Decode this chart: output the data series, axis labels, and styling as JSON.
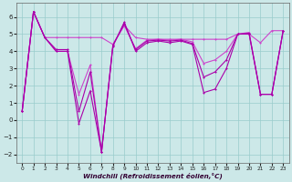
{
  "x": [
    0,
    1,
    2,
    3,
    4,
    5,
    6,
    7,
    8,
    9,
    10,
    11,
    12,
    13,
    14,
    15,
    16,
    17,
    18,
    19,
    20,
    21,
    22,
    23
  ],
  "y_main": [
    0.5,
    6.3,
    4.8,
    4.0,
    4.0,
    -0.2,
    1.7,
    -1.85,
    4.3,
    5.7,
    4.0,
    4.5,
    4.6,
    4.5,
    4.6,
    4.4,
    1.6,
    1.8,
    3.0,
    5.0,
    5.0,
    1.5,
    1.5,
    5.2
  ],
  "y_flat": [
    0.5,
    6.3,
    4.8,
    4.8,
    4.8,
    4.8,
    4.8,
    4.8,
    4.4,
    5.5,
    4.8,
    4.7,
    4.7,
    4.7,
    4.7,
    4.7,
    4.7,
    4.7,
    4.7,
    5.0,
    5.0,
    4.5,
    5.2,
    5.2
  ],
  "y_mid1": [
    0.5,
    6.3,
    4.8,
    4.1,
    4.1,
    0.5,
    2.8,
    -1.85,
    4.35,
    5.6,
    4.1,
    4.6,
    4.65,
    4.6,
    4.65,
    4.45,
    2.5,
    2.8,
    3.5,
    5.0,
    5.05,
    1.5,
    1.5,
    5.2
  ],
  "y_mid2": [
    0.5,
    6.3,
    4.8,
    4.0,
    4.0,
    1.5,
    3.2,
    -1.85,
    4.4,
    5.5,
    4.15,
    4.65,
    4.7,
    4.65,
    4.7,
    4.55,
    3.3,
    3.5,
    4.0,
    5.0,
    5.1,
    1.5,
    1.5,
    5.2
  ],
  "line_color": "#aa00aa",
  "line_color_light": "#cc44cc",
  "bg_color": "#cce8e8",
  "grid_color": "#99cccc",
  "xlabel": "Windchill (Refroidissement éolien,°C)",
  "ylim": [
    -2.5,
    6.8
  ],
  "xlim": [
    -0.5,
    23.5
  ],
  "yticks": [
    -2,
    -1,
    0,
    1,
    2,
    3,
    4,
    5,
    6
  ],
  "xticks": [
    0,
    1,
    2,
    3,
    4,
    5,
    6,
    7,
    8,
    9,
    10,
    11,
    12,
    13,
    14,
    15,
    16,
    17,
    18,
    19,
    20,
    21,
    22,
    23
  ]
}
